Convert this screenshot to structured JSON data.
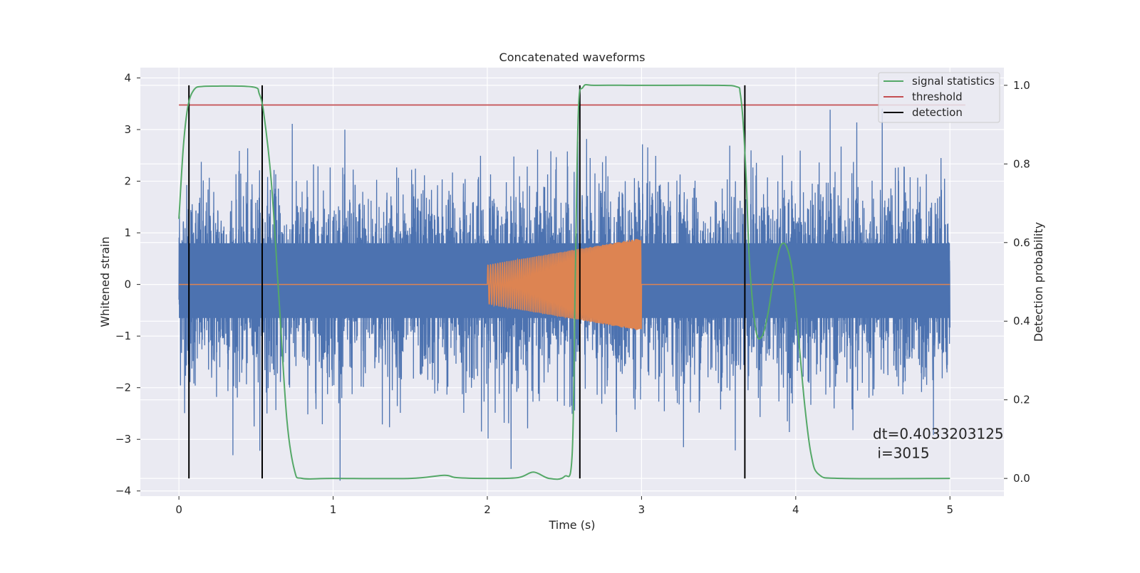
{
  "chart_data": {
    "type": "line",
    "title": "Concatenated waveforms",
    "xlabel": "Time (s)",
    "ylabel_left": "Whitened strain",
    "ylabel_right": "Detection probability",
    "xlim": [
      -0.25,
      5.35
    ],
    "ylim_left": [
      -4.1,
      4.2
    ],
    "ylim_right": [
      -0.045,
      1.045
    ],
    "xticks": [
      "0",
      "1",
      "2",
      "3",
      "4",
      "5"
    ],
    "xtick_values": [
      0,
      1,
      2,
      3,
      4,
      5
    ],
    "yticks_left": [
      "4",
      "3",
      "2",
      "1",
      "0",
      "−1",
      "−2",
      "−3",
      "−4"
    ],
    "ytick_values_left": [
      4,
      3,
      2,
      1,
      0,
      -1,
      -2,
      -3,
      -4
    ],
    "yticks_right": [
      "1.0",
      "0.8",
      "0.6",
      "0.4",
      "0.2",
      "0.0"
    ],
    "ytick_values_right": [
      1.0,
      0.8,
      0.6,
      0.4,
      0.2,
      0.0
    ],
    "grid": true,
    "legend_position": "top-right",
    "series": [
      {
        "name": "",
        "axis": "left",
        "color": "#4c72b0",
        "description_kind": "noise",
        "x_range": [
          0,
          5
        ],
        "core_amplitude": 0.8,
        "peak_amplitude": 3.8
      },
      {
        "name": "",
        "axis": "left",
        "color": "#dd8452",
        "description_kind": "chirp",
        "x_range": [
          0,
          5
        ],
        "chirp_start": 2.0,
        "chirp_end": 3.0,
        "amplitude_start": 0.38,
        "amplitude_end": 0.9
      },
      {
        "name": "signal statistics",
        "axis": "right",
        "color": "#55a868",
        "x": [
          0,
          0.03,
          0.06,
          0.1,
          0.15,
          0.25,
          0.4,
          0.5,
          0.52,
          0.55,
          0.6,
          0.65,
          0.7,
          0.75,
          0.8,
          1.0,
          1.5,
          1.72,
          1.8,
          2.0,
          2.2,
          2.3,
          2.4,
          2.5,
          2.55,
          2.57,
          2.59,
          2.62,
          2.7,
          3.0,
          3.5,
          3.62,
          3.64,
          3.66,
          3.68,
          3.7,
          3.74,
          3.78,
          3.82,
          3.86,
          3.9,
          3.94,
          3.98,
          4.02,
          4.06,
          4.1,
          4.15,
          4.3,
          5.0
        ],
        "values": [
          0.66,
          0.85,
          0.95,
          0.99,
          0.997,
          0.998,
          0.998,
          0.994,
          0.98,
          0.93,
          0.75,
          0.45,
          0.15,
          0.02,
          0.0,
          0.0,
          0.0,
          0.008,
          0.002,
          0.0,
          0.002,
          0.016,
          0.0,
          0.005,
          0.06,
          0.5,
          0.93,
          0.995,
          1.0,
          1.0,
          1.0,
          0.996,
          0.98,
          0.9,
          0.75,
          0.55,
          0.38,
          0.36,
          0.42,
          0.52,
          0.59,
          0.59,
          0.52,
          0.35,
          0.18,
          0.06,
          0.01,
          0.0,
          0.0
        ]
      },
      {
        "name": "threshold",
        "axis": "right",
        "color": "#c44e52",
        "x": [
          0,
          5.1
        ],
        "values": [
          0.95,
          0.95
        ]
      }
    ],
    "detections": {
      "name": "detection",
      "color": "#000000",
      "x": [
        0.065,
        0.54,
        2.6,
        3.67
      ],
      "y_range_right": [
        0.0,
        1.0
      ]
    },
    "annotation": {
      "line1": "dt=0.4033203125",
      "line2": " i=3015",
      "x": 4.5,
      "y_right": 0.115
    }
  }
}
